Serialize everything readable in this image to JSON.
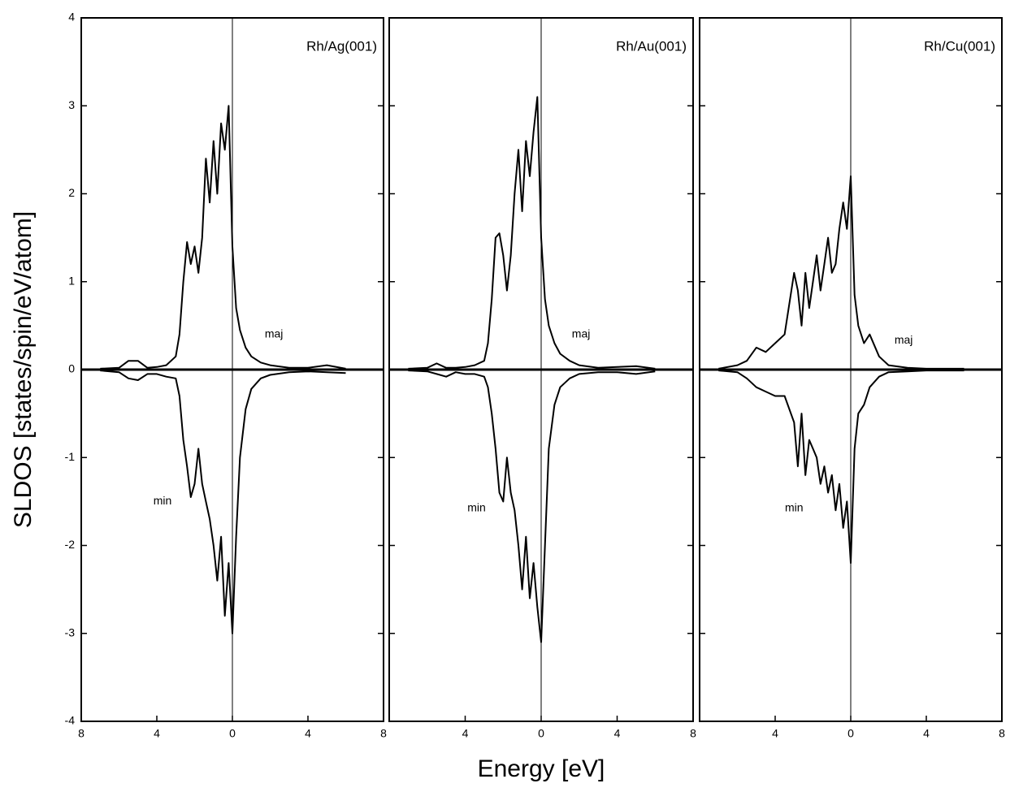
{
  "chart_data": [
    {
      "type": "line",
      "title": "Rh/Ag(001)",
      "ylabel": "SLDOS [states/spin/eV/atom]",
      "x": [
        -7,
        -6,
        -5.5,
        -5,
        -4.5,
        -4,
        -3.5,
        -3,
        -2.8,
        -2.6,
        -2.4,
        -2.2,
        -2,
        -1.8,
        -1.6,
        -1.4,
        -1.2,
        -1,
        -0.8,
        -0.6,
        -0.4,
        -0.2,
        0,
        0.2,
        0.4,
        0.7,
        1,
        1.5,
        2,
        3,
        4,
        5,
        6
      ],
      "series": [
        {
          "color": "#000000",
          "values": [
            0.01,
            0.02,
            0.1,
            0.1,
            0.02,
            0.03,
            0.05,
            0.15,
            0.4,
            1.0,
            1.45,
            1.2,
            1.4,
            1.1,
            1.5,
            2.4,
            1.9,
            2.6,
            2.0,
            2.8,
            2.5,
            3.0,
            1.4,
            0.7,
            0.45,
            0.25,
            0.15,
            0.08,
            0.05,
            0.02,
            0.02,
            0.05,
            0.01
          ]
        },
        {
          "color": "#000000",
          "values": [
            -0.01,
            -0.03,
            -0.1,
            -0.12,
            -0.05,
            -0.05,
            -0.08,
            -0.1,
            -0.3,
            -0.8,
            -1.1,
            -1.45,
            -1.3,
            -0.9,
            -1.3,
            -1.5,
            -1.7,
            -2.0,
            -2.4,
            -1.9,
            -2.8,
            -2.2,
            -3.0,
            -1.9,
            -1.0,
            -0.45,
            -0.22,
            -0.1,
            -0.06,
            -0.03,
            -0.02,
            -0.03,
            -0.04
          ]
        }
      ],
      "annotations": [
        {
          "text": "maj",
          "x": 2.2,
          "y": 0.4
        },
        {
          "text": "min",
          "x": -3.7,
          "y": -1.5
        }
      ],
      "xlim": [
        -8,
        8
      ],
      "xticks": [
        {
          "value": -8,
          "label": "8"
        },
        {
          "value": -4,
          "label": "4"
        },
        0,
        4,
        8
      ],
      "ylim": [
        -4,
        4
      ],
      "yticks": [
        -4,
        -3,
        -2,
        -1,
        0,
        1,
        2,
        3,
        4
      ]
    },
    {
      "type": "line",
      "title": "Rh/Au(001)",
      "xlabel": "Energy [eV]",
      "x": [
        -7,
        -6,
        -5.5,
        -5,
        -4.5,
        -4,
        -3.5,
        -3,
        -2.8,
        -2.6,
        -2.4,
        -2.2,
        -2,
        -1.8,
        -1.6,
        -1.4,
        -1.2,
        -1,
        -0.8,
        -0.6,
        -0.4,
        -0.2,
        0,
        0.2,
        0.4,
        0.7,
        1,
        1.5,
        2,
        3,
        4,
        5,
        6
      ],
      "series": [
        {
          "color": "#000000",
          "values": [
            0.01,
            0.02,
            0.07,
            0.02,
            0.02,
            0.03,
            0.05,
            0.1,
            0.3,
            0.8,
            1.5,
            1.55,
            1.3,
            0.9,
            1.3,
            2.0,
            2.5,
            1.8,
            2.6,
            2.2,
            2.7,
            3.1,
            1.5,
            0.8,
            0.5,
            0.3,
            0.18,
            0.1,
            0.05,
            0.02,
            0.03,
            0.04,
            0.01
          ]
        },
        {
          "color": "#000000",
          "values": [
            -0.01,
            -0.02,
            -0.05,
            -0.08,
            -0.03,
            -0.05,
            -0.05,
            -0.08,
            -0.2,
            -0.5,
            -0.9,
            -1.4,
            -1.5,
            -1.0,
            -1.4,
            -1.6,
            -2.0,
            -2.5,
            -1.9,
            -2.6,
            -2.2,
            -2.7,
            -3.1,
            -2.0,
            -0.9,
            -0.4,
            -0.2,
            -0.1,
            -0.05,
            -0.03,
            -0.03,
            -0.05,
            -0.02
          ]
        }
      ],
      "annotations": [
        {
          "text": "maj",
          "x": 2.1,
          "y": 0.4
        },
        {
          "text": "min",
          "x": -3.4,
          "y": -1.58
        }
      ],
      "xlim": [
        -8,
        8
      ],
      "xticks": [
        {
          "value": -4,
          "label": "4"
        },
        0,
        4,
        8
      ],
      "ylim": [
        -4,
        4
      ],
      "yticks": [
        -4,
        -3,
        -2,
        -1,
        0,
        1,
        2,
        3,
        4
      ]
    },
    {
      "type": "line",
      "title": "Rh/Cu(001)",
      "x": [
        -7,
        -6,
        -5.5,
        -5,
        -4.5,
        -4,
        -3.5,
        -3,
        -2.8,
        -2.6,
        -2.4,
        -2.2,
        -2,
        -1.8,
        -1.6,
        -1.4,
        -1.2,
        -1,
        -0.8,
        -0.6,
        -0.4,
        -0.2,
        0,
        0.2,
        0.4,
        0.7,
        1,
        1.5,
        2,
        3,
        4,
        5,
        6
      ],
      "series": [
        {
          "color": "#000000",
          "values": [
            0.01,
            0.05,
            0.1,
            0.25,
            0.2,
            0.3,
            0.4,
            1.1,
            0.9,
            0.5,
            1.1,
            0.7,
            1.0,
            1.3,
            0.9,
            1.2,
            1.5,
            1.1,
            1.2,
            1.6,
            1.9,
            1.6,
            2.2,
            0.85,
            0.5,
            0.3,
            0.4,
            0.15,
            0.05,
            0.02,
            0.01,
            0.01,
            0.01
          ]
        },
        {
          "color": "#000000",
          "values": [
            -0.01,
            -0.03,
            -0.1,
            -0.2,
            -0.25,
            -0.3,
            -0.3,
            -0.6,
            -1.1,
            -0.5,
            -1.2,
            -0.8,
            -0.9,
            -1.0,
            -1.3,
            -1.1,
            -1.4,
            -1.2,
            -1.6,
            -1.3,
            -1.8,
            -1.5,
            -2.2,
            -0.9,
            -0.5,
            -0.4,
            -0.2,
            -0.08,
            -0.03,
            -0.02,
            -0.01,
            -0.01,
            -0.01
          ]
        }
      ],
      "annotations": [
        {
          "text": "maj",
          "x": 2.8,
          "y": 0.33
        },
        {
          "text": "min",
          "x": -3.0,
          "y": -1.58
        }
      ],
      "xlim": [
        -8,
        8
      ],
      "xticks": [
        {
          "value": -4,
          "label": "4"
        },
        0,
        4,
        8
      ],
      "ylim": [
        -4,
        4
      ],
      "yticks": [
        -4,
        -3,
        -2,
        -1,
        0,
        1,
        2,
        3,
        4
      ]
    }
  ]
}
